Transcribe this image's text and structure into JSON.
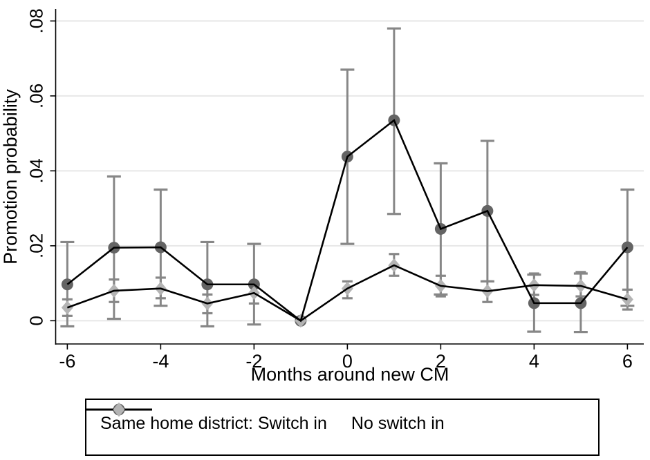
{
  "chart_data": {
    "type": "line",
    "title": "",
    "xlabel": "Months around new CM",
    "ylabel": "Promotion probability",
    "grid": "horizontal",
    "legend_position": "bottom",
    "xlim": [
      -6.25,
      6.35
    ],
    "ylim": [
      -0.0062,
      0.0832
    ],
    "xticks": {
      "values": [
        -6,
        -4,
        -2,
        0,
        2,
        4,
        6
      ],
      "labels": [
        "-6",
        "-4",
        "-2",
        "0",
        "2",
        "4",
        "6"
      ]
    },
    "yticks": {
      "values": [
        0,
        0.02,
        0.04,
        0.06,
        0.08
      ],
      "labels": [
        "0",
        ".02",
        ".04",
        ".06",
        ".08"
      ]
    },
    "x": [
      -6,
      -5,
      -4,
      -3,
      -2,
      -1,
      0,
      1,
      2,
      3,
      4,
      5,
      6
    ],
    "series": [
      {
        "name": "Same home district: Switch in",
        "marker": "circle",
        "marker_color": "#646464",
        "line_color": "#000000",
        "values": [
          0.0097,
          0.0195,
          0.0196,
          0.0097,
          0.0097,
          0,
          0.0438,
          0.0535,
          0.0245,
          0.0293,
          0.0047,
          0.0047,
          0.0196
        ],
        "ci_low": [
          -0.0015,
          0.0005,
          0.004,
          -0.0015,
          -0.001,
          null,
          0.0205,
          0.0285,
          0.007,
          0.0105,
          -0.0029,
          -0.003,
          0.004
        ],
        "ci_high": [
          0.021,
          0.0385,
          0.035,
          0.021,
          0.0205,
          null,
          0.067,
          0.078,
          0.042,
          0.048,
          0.0123,
          0.0126,
          0.035
        ]
      },
      {
        "name": "No switch in",
        "marker": "diamond",
        "marker_color": "#b4b4b4",
        "line_color": "#000000",
        "values": [
          0.0035,
          0.008,
          0.0086,
          0.0046,
          0.0074,
          0,
          0.0086,
          0.0148,
          0.0093,
          0.0079,
          0.0095,
          0.0093,
          0.0057
        ],
        "ci_low": [
          0.0013,
          0.005,
          0.006,
          0.002,
          0.0046,
          null,
          0.006,
          0.012,
          0.0065,
          0.005,
          0.0069,
          0.0065,
          0.003
        ],
        "ci_high": [
          0.0057,
          0.011,
          0.0115,
          0.007,
          0.0102,
          null,
          0.0105,
          0.0178,
          0.012,
          0.0105,
          0.0126,
          0.013,
          0.0083
        ]
      }
    ],
    "style": {
      "gridline_color": "#e7e7e7",
      "axis_color": "#000000",
      "errorbar_color": "#878787",
      "background": "#ffffff"
    }
  },
  "legend": {
    "entries": [
      "Same home district: Switch in",
      "No switch in"
    ]
  }
}
